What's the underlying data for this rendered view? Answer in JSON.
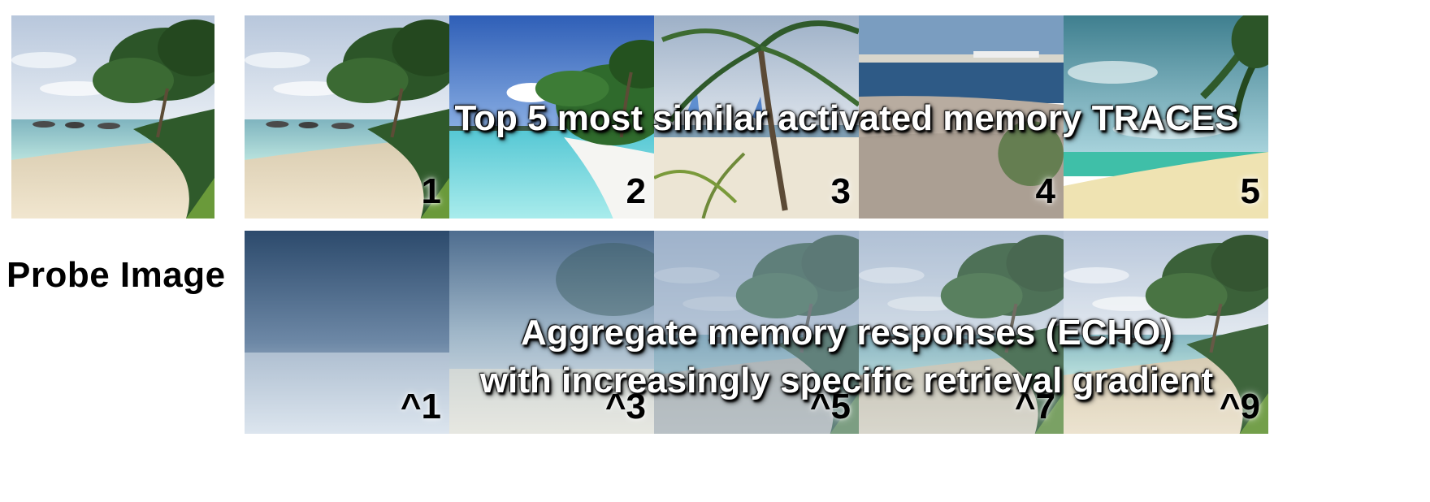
{
  "probe": {
    "label": "Probe Image",
    "icon": "beach-photo-icon"
  },
  "traces": {
    "caption": "Top 5 most similar activated memory TRACES",
    "items": [
      {
        "rank": "1",
        "scene": "beach-palms-calm-sea"
      },
      {
        "rank": "2",
        "scene": "tropical-turquoise-lagoon"
      },
      {
        "rank": "3",
        "scene": "palm-beach-sailboats"
      },
      {
        "rank": "4",
        "scene": "pebble-shore"
      },
      {
        "rank": "5",
        "scene": "turquoise-bay-palm"
      }
    ]
  },
  "echo": {
    "caption_line1": "Aggregate memory responses (ECHO)",
    "caption_line2": "with increasingly specific retrieval gradient",
    "items": [
      {
        "exponent": "^1"
      },
      {
        "exponent": "^3"
      },
      {
        "exponent": "^5"
      },
      {
        "exponent": "^7"
      },
      {
        "exponent": "^9"
      }
    ]
  },
  "colors": {
    "sky": "#c9d7e8",
    "sea": "#9fd6d2",
    "sand": "#e9dcc0",
    "foliage": "#2e5a2a",
    "echo_dark": "#1f3c5e"
  }
}
